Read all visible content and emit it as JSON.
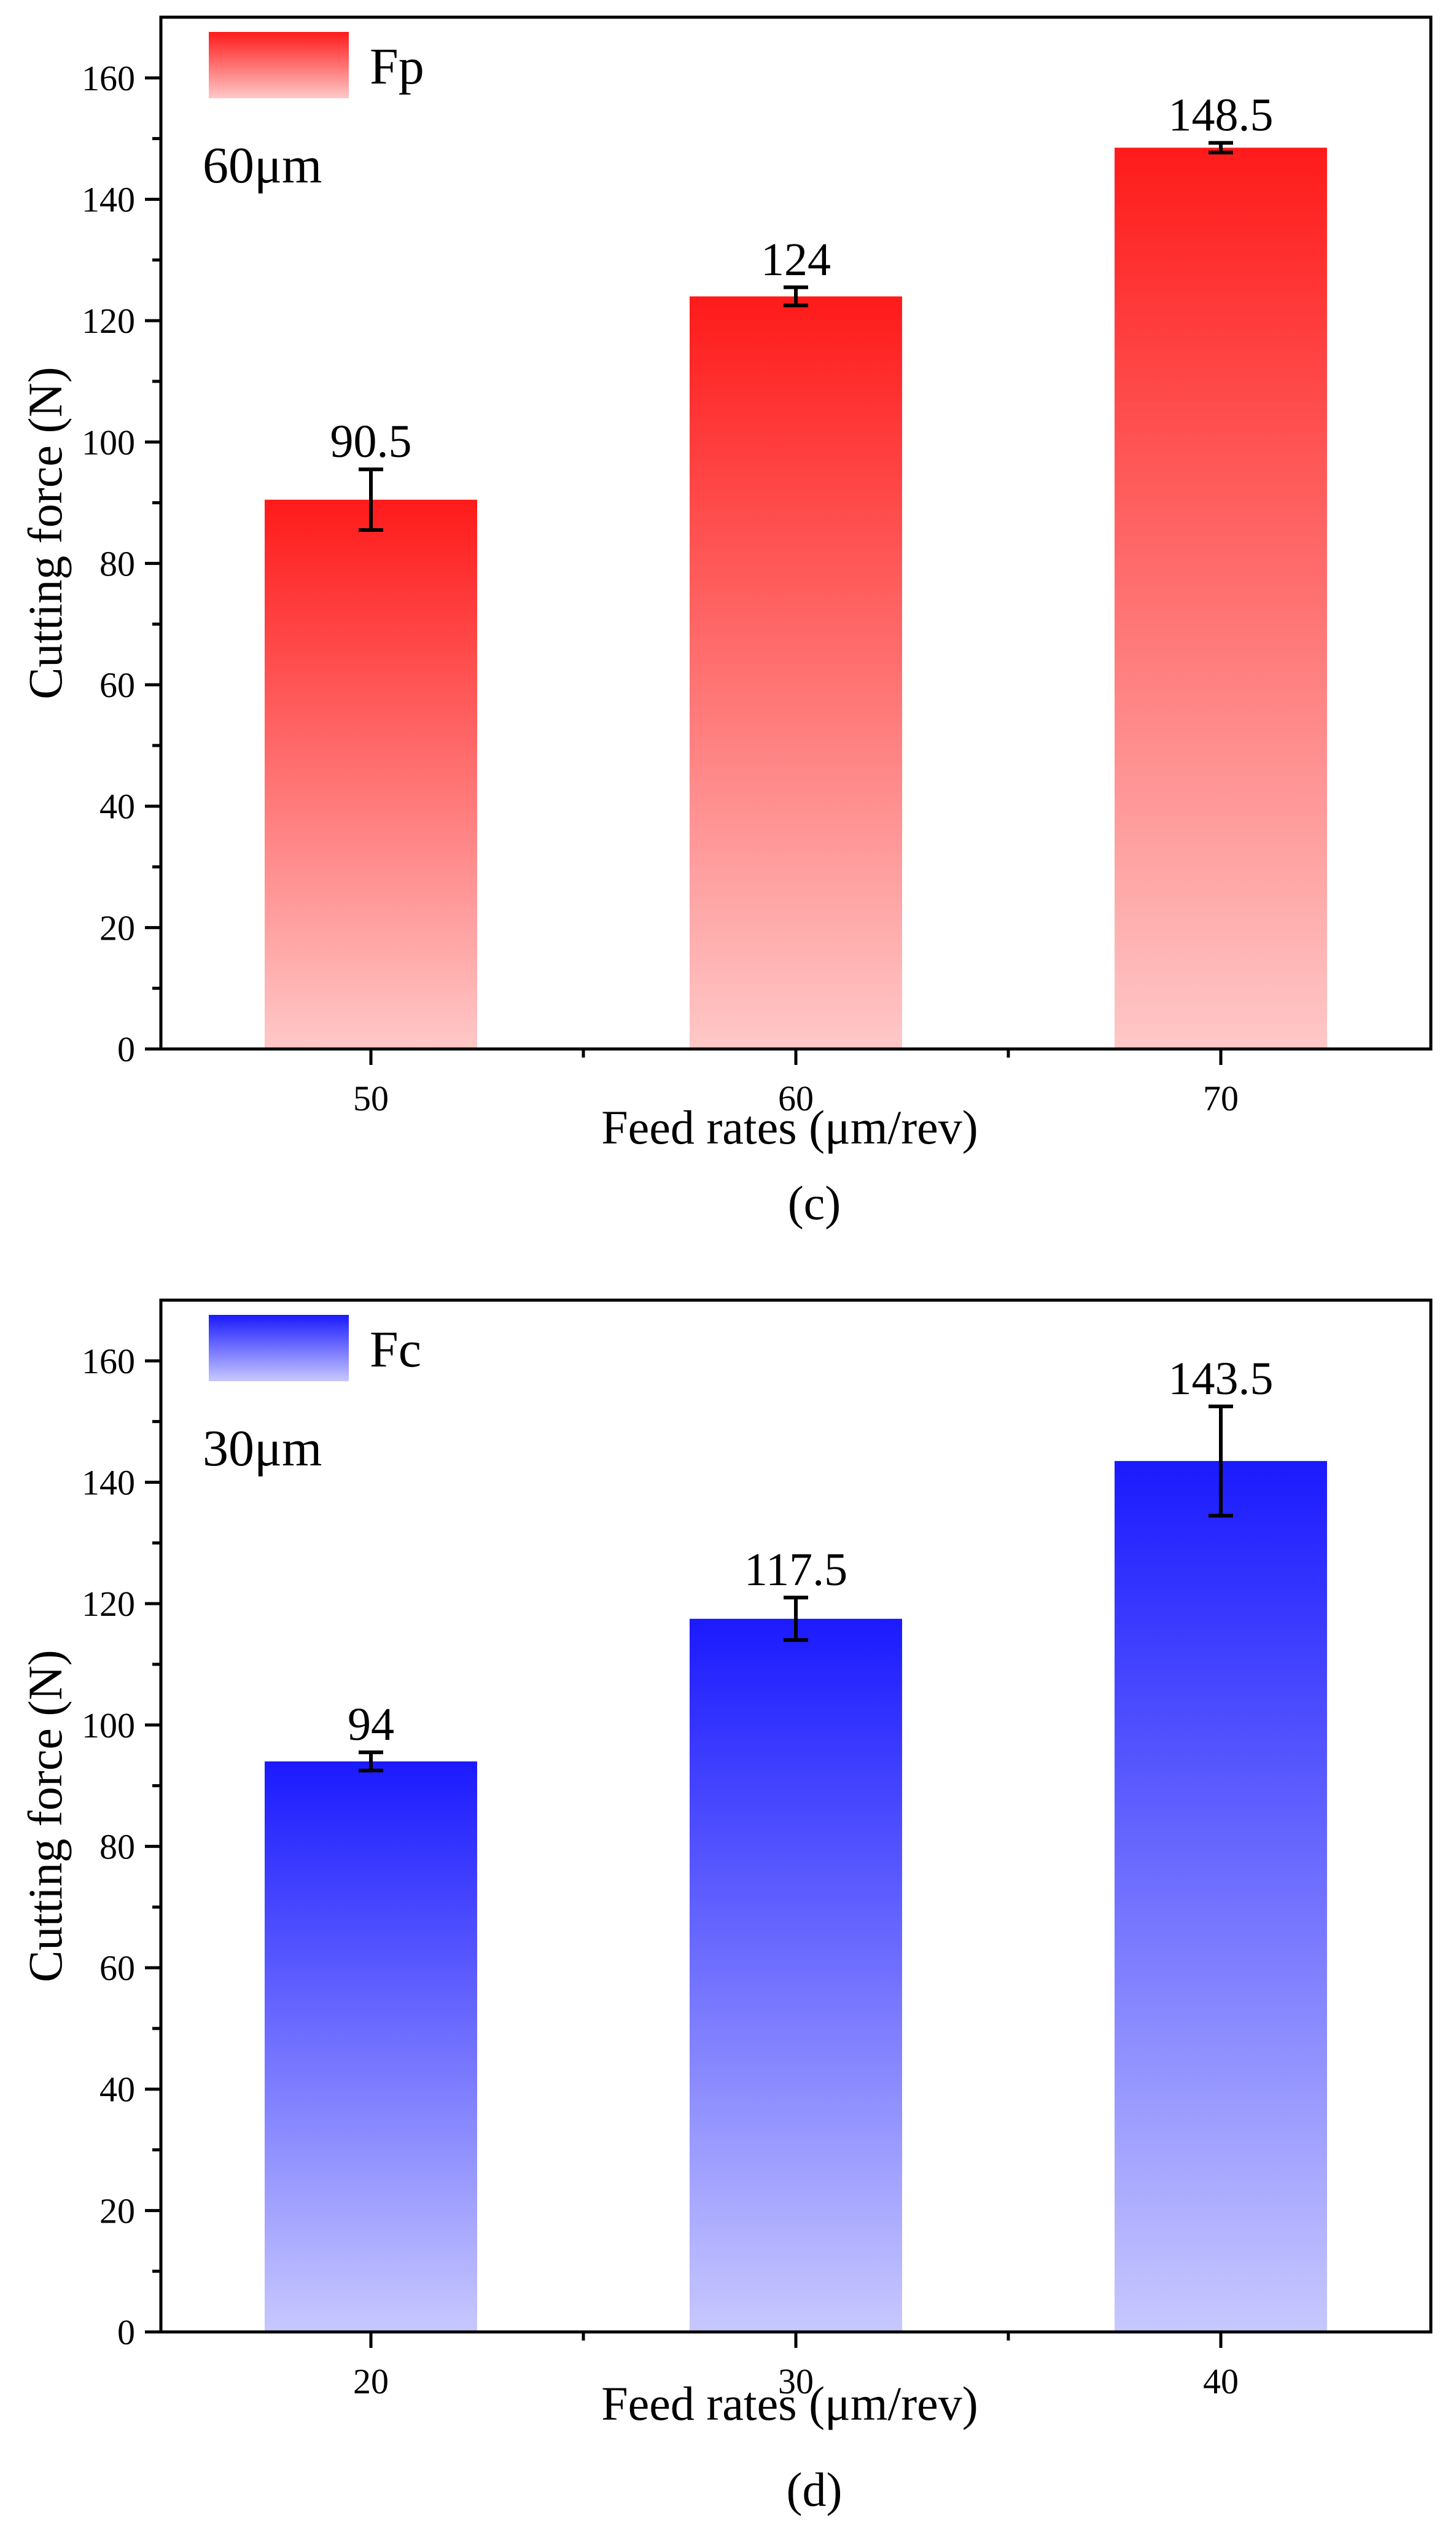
{
  "chart_data": [
    {
      "type": "bar",
      "panel_label": "(c)",
      "categories": [
        "50",
        "60",
        "70"
      ],
      "series": [
        {
          "name": "Fp",
          "values": [
            90.5,
            124,
            148.5
          ],
          "errors": [
            5,
            1.5,
            0.8
          ]
        }
      ],
      "data_labels": [
        "90.5",
        "124",
        "148.5"
      ],
      "legend_note": "60μm",
      "xlabel": "Feed rates (μm/rev)",
      "ylabel": "Cutting force (N)",
      "ylim": [
        0,
        170
      ],
      "yticks": [
        "0",
        "20",
        "40",
        "60",
        "80",
        "100",
        "120",
        "140",
        "160"
      ],
      "grid": false,
      "legend_position": "top-left",
      "colors": {
        "top": "#ff1a1a",
        "bottom": "#ffc8c8"
      }
    },
    {
      "type": "bar",
      "panel_label": "(d)",
      "categories": [
        "20",
        "30",
        "40"
      ],
      "series": [
        {
          "name": "Fc",
          "values": [
            94,
            117.5,
            143.5
          ],
          "errors": [
            1.5,
            3.5,
            9
          ]
        }
      ],
      "data_labels": [
        "94",
        "117.5",
        "143.5"
      ],
      "legend_note": "30μm",
      "xlabel": "Feed rates (μm/rev)",
      "ylabel": "Cutting force (N)",
      "ylim": [
        0,
        170
      ],
      "yticks": [
        "0",
        "20",
        "40",
        "60",
        "80",
        "100",
        "120",
        "140",
        "160"
      ],
      "grid": false,
      "legend_position": "top-left",
      "colors": {
        "top": "#1a1aff",
        "bottom": "#c8c8ff"
      }
    }
  ]
}
